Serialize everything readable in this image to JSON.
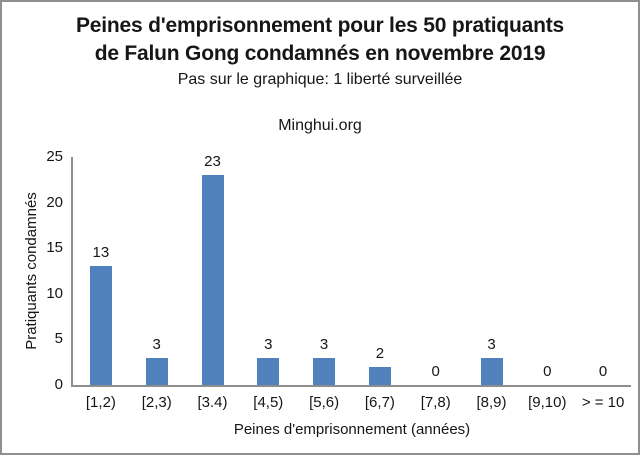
{
  "window": {
    "background_color": "#ffffff",
    "border_color": "#8f8f8f"
  },
  "header": {
    "title_line1": "Peines d'emprisonnement pour les 50 pratiquants",
    "title_line2": "de Falun Gong condamnés en novembre 2019",
    "subtitle": "Pas sur le graphique: 1 liberté surveillée",
    "source_label": "Minghui.org"
  },
  "chart_data": {
    "type": "bar",
    "title": "Peines d'emprisonnement pour les 50 pratiquants de Falun Gong condamnés en novembre 2019",
    "subtitle": "Pas sur le graphique: 1 liberté surveillée",
    "source_label": "Minghui.org",
    "categories": [
      "[1,2)",
      "[2,3)",
      "[3.4)",
      "[4,5)",
      "[5,6)",
      "[6,7)",
      "[7,8)",
      "[8,9)",
      "[9,10)",
      "> = 10"
    ],
    "values": [
      13,
      3,
      23,
      3,
      3,
      2,
      0,
      3,
      0,
      0
    ],
    "xlabel": "Peines d'emprisonnement (années)",
    "ylabel": "Pratiquants condamnés",
    "ylim": [
      0,
      25
    ],
    "yticks": [
      0,
      5,
      10,
      15,
      20,
      25
    ],
    "grid": false,
    "legend": "none",
    "value_labels_shown": true,
    "bar_color": "#4F81BD",
    "axis_color": "#8e8e8e",
    "text_color": "#161616"
  }
}
